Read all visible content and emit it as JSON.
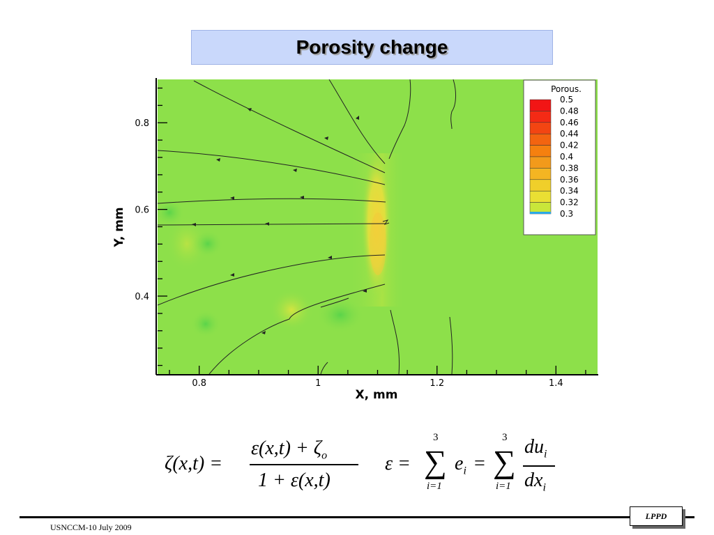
{
  "slide": {
    "title": "Porosity change",
    "footer": "USNCCM-10 July 2009",
    "badge": "LPPD"
  },
  "colors": {
    "field_green": "#8de04a",
    "front_yellow": "#e8d640",
    "title_bg": "#c9d8fb"
  },
  "chart_data": {
    "type": "heatmap",
    "title": "",
    "xlabel": "X, mm",
    "ylabel": "Y, mm",
    "xlim": [
      0.73,
      1.47
    ],
    "ylim": [
      0.22,
      0.9
    ],
    "x_ticks": [
      0.8,
      1,
      1.2,
      1.4
    ],
    "y_ticks": [
      0.4,
      0.6,
      0.8
    ],
    "legend": {
      "title": "Porous.",
      "placement": "top-right",
      "levels": [
        0.5,
        0.48,
        0.46,
        0.44,
        0.42,
        0.4,
        0.38,
        0.36,
        0.34,
        0.32,
        0.3
      ],
      "level_colors": [
        "#f21515",
        "#f42a15",
        "#f34512",
        "#f36410",
        "#f5800f",
        "#f29a1b",
        "#f4b522",
        "#f0cf2a",
        "#eadf33",
        "#c9e63a",
        "#8fe34a"
      ]
    },
    "field_range": [
      0.3,
      0.5
    ],
    "front_x": 1.1
  },
  "equations": {
    "eq1": {
      "lhs": "ζ(x,t) =",
      "numerator": "ε(x,t) + ζ",
      "numerator_sub": "o",
      "denominator": "1 + ε(x,t)"
    },
    "eq2": {
      "lhs": "ε =",
      "sum_upper": "3",
      "sum_lower": "i=1",
      "term": "e",
      "term_sub": "i",
      "equals": "=",
      "sum2_upper": "3",
      "sum2_lower": "i=1",
      "frac_num": "du",
      "frac_num_sub": "i",
      "frac_den": "dx",
      "frac_den_sub": "i"
    }
  }
}
